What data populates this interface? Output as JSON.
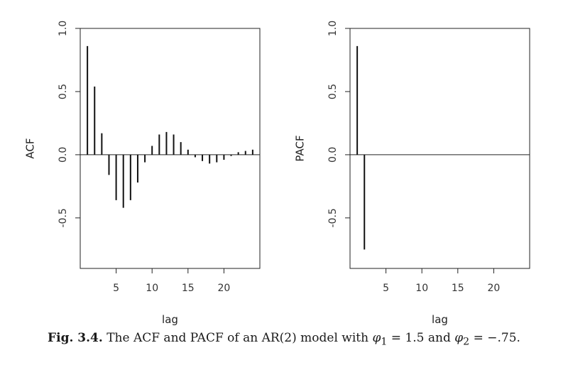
{
  "chart_data": [
    {
      "type": "bar",
      "ylabel": "ACF",
      "xlabel": "lag",
      "xlim": [
        0,
        25
      ],
      "ylim": [
        -0.9,
        1.0
      ],
      "x_ticks": [
        5,
        10,
        15,
        20
      ],
      "y_ticks": [
        1.0,
        0.5,
        0.0,
        -0.5
      ],
      "y_tick_labels": [
        "1.0",
        "0.5",
        "0.0",
        "-0.5"
      ],
      "grid": false,
      "lags": [
        1,
        2,
        3,
        4,
        5,
        6,
        7,
        8,
        9,
        10,
        11,
        12,
        13,
        14,
        15,
        16,
        17,
        18,
        19,
        20,
        21,
        22,
        23,
        24
      ],
      "values": [
        0.86,
        0.54,
        0.17,
        -0.16,
        -0.36,
        -0.42,
        -0.36,
        -0.22,
        -0.06,
        0.07,
        0.16,
        0.18,
        0.16,
        0.1,
        0.04,
        -0.02,
        -0.05,
        -0.07,
        -0.06,
        -0.04,
        -0.01,
        0.02,
        0.03,
        0.04
      ]
    },
    {
      "type": "bar",
      "ylabel": "PACF",
      "xlabel": "lag",
      "xlim": [
        0,
        25
      ],
      "ylim": [
        -0.9,
        1.0
      ],
      "x_ticks": [
        5,
        10,
        15,
        20
      ],
      "y_ticks": [
        1.0,
        0.5,
        0.0,
        -0.5
      ],
      "y_tick_labels": [
        "1.0",
        "0.5",
        "0.0",
        "-0.5"
      ],
      "grid": false,
      "lags": [
        1,
        2,
        3,
        4,
        5,
        6,
        7,
        8,
        9,
        10,
        11,
        12,
        13,
        14,
        15,
        16,
        17,
        18,
        19,
        20,
        21,
        22,
        23,
        24
      ],
      "values": [
        0.86,
        -0.75,
        0,
        0,
        0,
        0,
        0,
        0,
        0,
        0,
        0,
        0,
        0,
        0,
        0,
        0,
        0,
        0,
        0,
        0,
        0,
        0,
        0,
        0
      ]
    }
  ],
  "caption": {
    "label": "Fig. 3.4.",
    "text_1": " The ACF and PACF of an AR(2) model with ",
    "phi1_symbol": "φ",
    "phi1_sub": "1",
    "eq1": " = 1.5 and ",
    "phi2_symbol": "φ",
    "phi2_sub": "2",
    "eq2": " = −.75."
  }
}
